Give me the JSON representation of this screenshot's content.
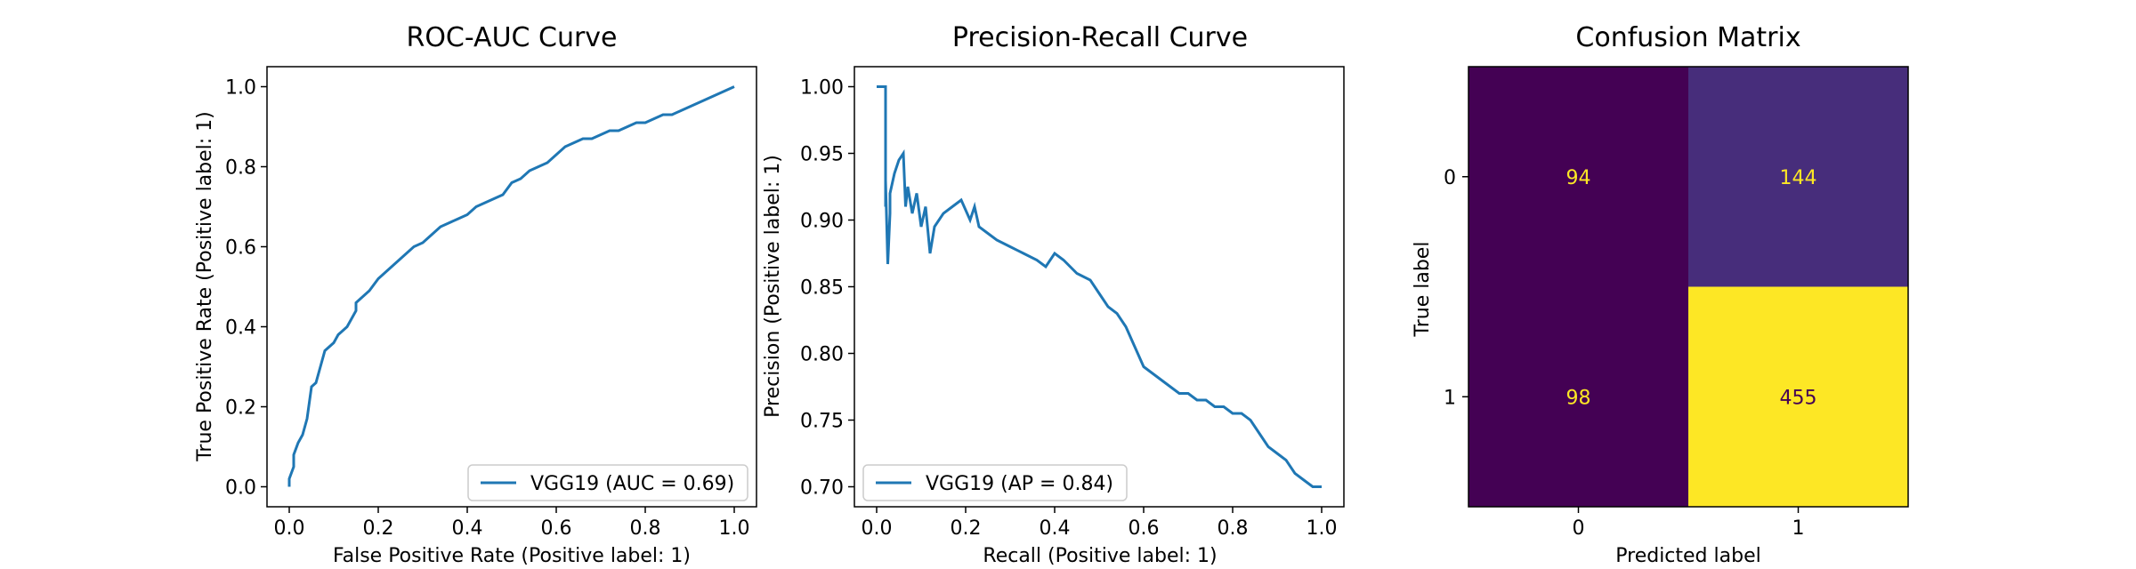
{
  "chart_data": [
    {
      "type": "line",
      "title": "ROC-AUC Curve",
      "xlabel": "False Positive Rate (Positive label: 1)",
      "ylabel": "True Positive Rate (Positive label: 1)",
      "xlim": [
        -0.05,
        1.05
      ],
      "ylim": [
        -0.05,
        1.05
      ],
      "xticks": [
        "0.0",
        "0.2",
        "0.4",
        "0.6",
        "0.8",
        "1.0"
      ],
      "yticks": [
        "0.0",
        "0.2",
        "0.4",
        "0.6",
        "0.8",
        "1.0"
      ],
      "legend": "lower right",
      "series": [
        {
          "name": "VGG19 (AUC = 0.69)",
          "color": "#1f77b4",
          "x": [
            0.0,
            0.0,
            0.01,
            0.01,
            0.02,
            0.03,
            0.04,
            0.05,
            0.06,
            0.07,
            0.08,
            0.1,
            0.11,
            0.13,
            0.15,
            0.15,
            0.16,
            0.18,
            0.2,
            0.22,
            0.24,
            0.26,
            0.28,
            0.3,
            0.32,
            0.34,
            0.36,
            0.38,
            0.4,
            0.42,
            0.44,
            0.46,
            0.48,
            0.5,
            0.52,
            0.54,
            0.56,
            0.58,
            0.6,
            0.62,
            0.64,
            0.66,
            0.68,
            0.7,
            0.72,
            0.74,
            0.76,
            0.78,
            0.8,
            0.82,
            0.84,
            0.86,
            0.88,
            0.9,
            0.92,
            0.94,
            0.96,
            0.98,
            1.0
          ],
          "y": [
            0.0,
            0.02,
            0.05,
            0.08,
            0.11,
            0.13,
            0.17,
            0.25,
            0.26,
            0.3,
            0.34,
            0.36,
            0.38,
            0.4,
            0.44,
            0.46,
            0.47,
            0.49,
            0.52,
            0.54,
            0.56,
            0.58,
            0.6,
            0.61,
            0.63,
            0.65,
            0.66,
            0.67,
            0.68,
            0.7,
            0.71,
            0.72,
            0.73,
            0.76,
            0.77,
            0.79,
            0.8,
            0.81,
            0.83,
            0.85,
            0.86,
            0.87,
            0.87,
            0.88,
            0.89,
            0.89,
            0.9,
            0.91,
            0.91,
            0.92,
            0.93,
            0.93,
            0.94,
            0.95,
            0.96,
            0.97,
            0.98,
            0.99,
            1.0
          ]
        }
      ]
    },
    {
      "type": "line",
      "title": "Precision-Recall Curve",
      "xlabel": "Recall (Positive label: 1)",
      "ylabel": "Precision (Positive label: 1)",
      "xlim": [
        -0.05,
        1.05
      ],
      "ylim": [
        0.685,
        1.015
      ],
      "xticks": [
        "0.0",
        "0.2",
        "0.4",
        "0.6",
        "0.8",
        "1.0"
      ],
      "yticks": [
        "0.70",
        "0.75",
        "0.80",
        "0.85",
        "0.90",
        "0.95",
        "1.00"
      ],
      "legend": "lower left",
      "series": [
        {
          "name": "VGG19 (AP = 0.84)",
          "color": "#1f77b4",
          "x": [
            0.0,
            0.02,
            0.02,
            0.02,
            0.025,
            0.03,
            0.03,
            0.04,
            0.05,
            0.06,
            0.065,
            0.07,
            0.08,
            0.09,
            0.1,
            0.11,
            0.12,
            0.13,
            0.15,
            0.17,
            0.19,
            0.21,
            0.22,
            0.23,
            0.25,
            0.27,
            0.3,
            0.33,
            0.36,
            0.38,
            0.4,
            0.42,
            0.45,
            0.48,
            0.5,
            0.52,
            0.54,
            0.56,
            0.58,
            0.6,
            0.62,
            0.64,
            0.66,
            0.68,
            0.7,
            0.72,
            0.74,
            0.76,
            0.78,
            0.8,
            0.82,
            0.84,
            0.86,
            0.88,
            0.9,
            0.92,
            0.94,
            0.96,
            0.98,
            1.0
          ],
          "y": [
            1.0,
            1.0,
            0.91,
            0.93,
            0.867,
            0.905,
            0.92,
            0.935,
            0.945,
            0.95,
            0.91,
            0.925,
            0.905,
            0.92,
            0.895,
            0.91,
            0.875,
            0.895,
            0.905,
            0.91,
            0.915,
            0.9,
            0.91,
            0.895,
            0.89,
            0.885,
            0.88,
            0.875,
            0.87,
            0.865,
            0.875,
            0.87,
            0.86,
            0.855,
            0.845,
            0.835,
            0.83,
            0.82,
            0.805,
            0.79,
            0.785,
            0.78,
            0.775,
            0.77,
            0.77,
            0.765,
            0.765,
            0.76,
            0.76,
            0.755,
            0.755,
            0.75,
            0.74,
            0.73,
            0.725,
            0.72,
            0.71,
            0.705,
            0.7,
            0.7
          ]
        }
      ]
    },
    {
      "type": "heatmap",
      "title": "Confusion Matrix",
      "xlabel": "Predicted label",
      "ylabel": "True label",
      "x_categories": [
        "0",
        "1"
      ],
      "y_categories": [
        "0",
        "1"
      ],
      "values": [
        [
          94,
          144
        ],
        [
          98,
          455
        ]
      ],
      "colormap": "viridis",
      "cell_colors": [
        [
          "#440154",
          "#472d7b"
        ],
        [
          "#440154",
          "#fde725"
        ]
      ],
      "text_colors": [
        [
          "#fde725",
          "#fde725"
        ],
        [
          "#fde725",
          "#440154"
        ]
      ]
    }
  ]
}
